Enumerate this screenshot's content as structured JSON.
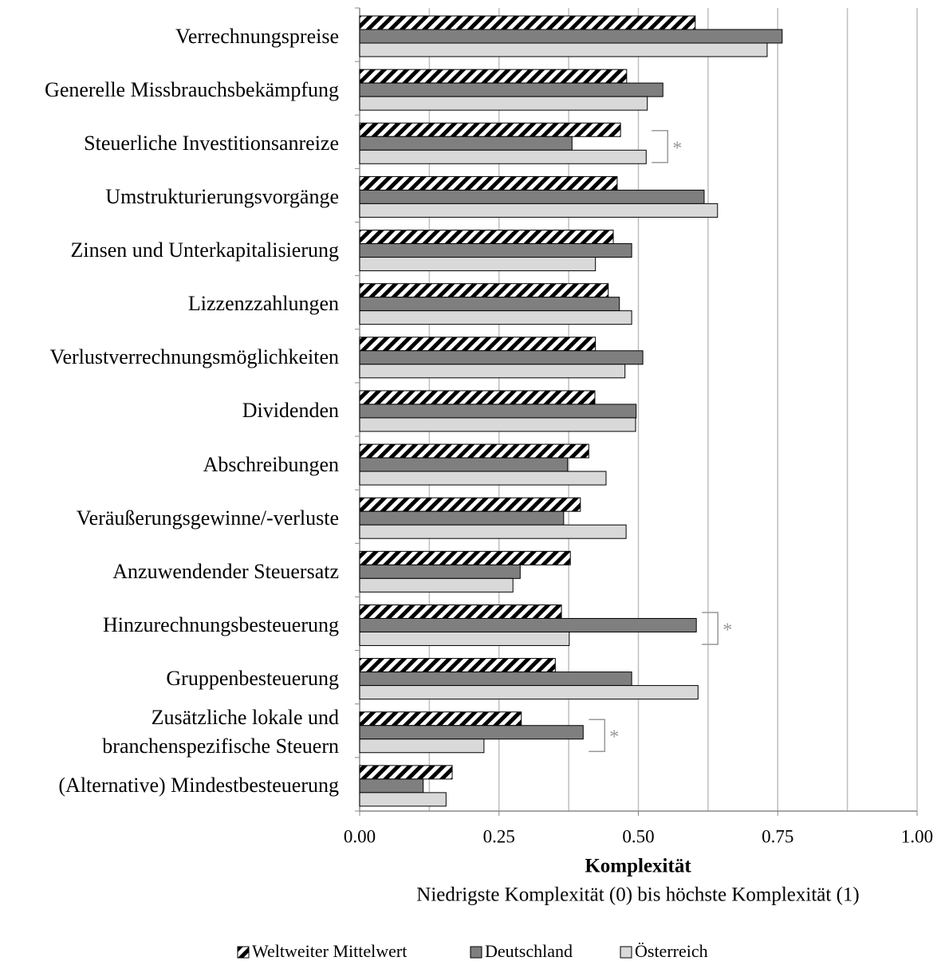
{
  "chart_data": {
    "type": "bar",
    "orientation": "horizontal",
    "categories": [
      "Verrechnungspreise",
      "Generelle Missbrauchsbekämpfung",
      "Steuerliche Investitionsanreize",
      "Umstrukturierungsvorgänge",
      "Zinsen und Unterkapitalisierung",
      "Lizzenzzahlungen",
      "Verlustverrechnungsmöglichkeiten",
      "Dividenden",
      "Abschreibungen",
      "Veräußerungsgewinne/-verluste",
      "Anzuwendender Steuersatz",
      "Hinzurechnungsbesteuerung",
      "Gruppenbesteuerung",
      "Zusätzliche lokale und\nbranchenspezifische Steuern",
      "(Alternative) Mindestbesteuerung"
    ],
    "series": [
      {
        "name": "Weltweiter Mittelwert",
        "color": "hatch",
        "values": [
          0.602,
          0.479,
          0.468,
          0.462,
          0.455,
          0.446,
          0.423,
          0.422,
          0.411,
          0.396,
          0.378,
          0.362,
          0.351,
          0.29,
          0.166
        ]
      },
      {
        "name": "Deutschland",
        "color": "#7f7f7f",
        "values": [
          0.758,
          0.544,
          0.381,
          0.618,
          0.488,
          0.466,
          0.508,
          0.496,
          0.373,
          0.366,
          0.288,
          0.604,
          0.488,
          0.401,
          0.114
        ]
      },
      {
        "name": "Österreich",
        "color": "#d9d9d9",
        "values": [
          0.731,
          0.516,
          0.514,
          0.642,
          0.423,
          0.488,
          0.476,
          0.495,
          0.442,
          0.478,
          0.275,
          0.376,
          0.607,
          0.223,
          0.155
        ]
      }
    ],
    "xlim": [
      0,
      1
    ],
    "xticks": [
      {
        "value": 0,
        "label": "0.00"
      },
      {
        "value": 0.25,
        "label": "0.25"
      },
      {
        "value": 0.5,
        "label": "0.50"
      },
      {
        "value": 0.75,
        "label": "0.75"
      },
      {
        "value": 1,
        "label": "1.00"
      }
    ],
    "minor_gridlines": [
      0.125,
      0.375,
      0.625,
      0.875
    ],
    "grid": true,
    "xlabel": "Komplexität",
    "xsublabel": "Niedrigste Komplexität (0) bis höchste Komplexität (1)",
    "annotations": [
      {
        "category": "Steuerliche Investitionsanreize",
        "text": "*"
      },
      {
        "category": "Hinzurechnungsbesteuerung",
        "text": "*"
      },
      {
        "category": "Zusätzliche lokale und\nbranchenspezifische Steuern",
        "text": "*"
      }
    ],
    "legend": "bottom"
  }
}
